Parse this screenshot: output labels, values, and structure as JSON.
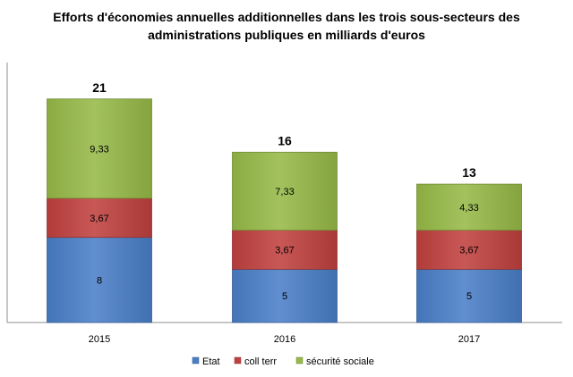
{
  "chart_data": {
    "type": "bar",
    "stacked": true,
    "title": "Efforts d'économies annuelles additionnelles dans les trois sous-secteurs des administrations publiques en milliards d'euros",
    "title_lines": [
      "Efforts d'économies annuelles additionnelles dans les trois sous-secteurs des",
      "administrations publiques en milliards d'euros"
    ],
    "categories": [
      "2015",
      "2016",
      "2017"
    ],
    "series": [
      {
        "name": "Etat",
        "values": [
          8,
          5,
          5
        ],
        "labels": [
          "8",
          "5",
          "5"
        ],
        "color": "#4a7fc8"
      },
      {
        "name": "coll terr",
        "values": [
          3.67,
          3.67,
          3.67
        ],
        "labels": [
          "3,67",
          "3,67",
          "3,67"
        ],
        "color": "#c0413f"
      },
      {
        "name": "sécurité sociale",
        "values": [
          9.33,
          7.33,
          4.33
        ],
        "labels": [
          "9,33",
          "7,33",
          "4,33"
        ],
        "color": "#97ba48"
      }
    ],
    "totals": [
      "21",
      "16",
      "13"
    ],
    "ylim": [
      0,
      24
    ],
    "grid": false,
    "legend_position": "bottom",
    "xlabel": "",
    "ylabel": ""
  }
}
